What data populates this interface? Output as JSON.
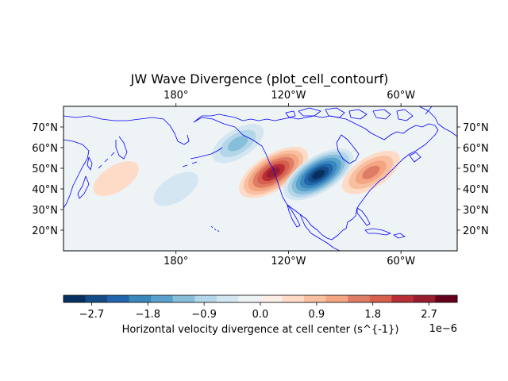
{
  "figure": {
    "title": "JW Wave Divergence (plot_cell_contourf)"
  },
  "map": {
    "projection": "PlateCarree",
    "lon_range": [
      -240,
      -30
    ],
    "lat_range": [
      10,
      80
    ],
    "lon_ticks": [
      "180°",
      "120°W",
      "60°W"
    ],
    "lat_ticks": [
      "20°N",
      "30°N",
      "40°N",
      "50°N",
      "60°N",
      "70°N"
    ],
    "coastline_color": "#0000ff",
    "features": [
      {
        "name": "positive-lobe-west-pacific",
        "sign": "positive",
        "lon": -212,
        "lat": 45,
        "strength": 0.15
      },
      {
        "name": "negative-lobe-mid-pacific",
        "sign": "negative",
        "lon": -180,
        "lat": 40,
        "strength": 0.12
      },
      {
        "name": "positive-lobe-east-pacific",
        "sign": "positive",
        "lon": -128,
        "lat": 48,
        "strength": 0.92
      },
      {
        "name": "negative-lobe-rockies",
        "sign": "negative",
        "lon": -104,
        "lat": 47,
        "strength": 0.95
      },
      {
        "name": "positive-lobe-great-lakes",
        "sign": "positive",
        "lon": -76,
        "lat": 48,
        "strength": 0.55
      },
      {
        "name": "negative-lobe-alaska",
        "sign": "negative",
        "lon": -147,
        "lat": 62,
        "strength": 0.35
      }
    ]
  },
  "colorbar": {
    "label": "Horizontal velocity divergence at cell center (s^{-1})",
    "scale_label": "1e−6",
    "ticks": [
      "−2.7",
      "−1.8",
      "−0.9",
      "0.0",
      "0.9",
      "1.8",
      "2.7"
    ],
    "tick_values": [
      -2.7,
      -1.8,
      -0.9,
      0.0,
      0.9,
      1.8,
      2.7
    ],
    "range": [
      -3.15,
      3.15
    ],
    "colors": [
      "#053061",
      "#134c87",
      "#2166ac",
      "#3a87bc",
      "#5aa1cd",
      "#87beda",
      "#b3d6e8",
      "#d4e6f1",
      "#eef3f6",
      "#fbeee6",
      "#fddbc7",
      "#f8bfa0",
      "#f4a582",
      "#df7c65",
      "#d6604d",
      "#b82e37",
      "#981d2f",
      "#67001f"
    ]
  }
}
